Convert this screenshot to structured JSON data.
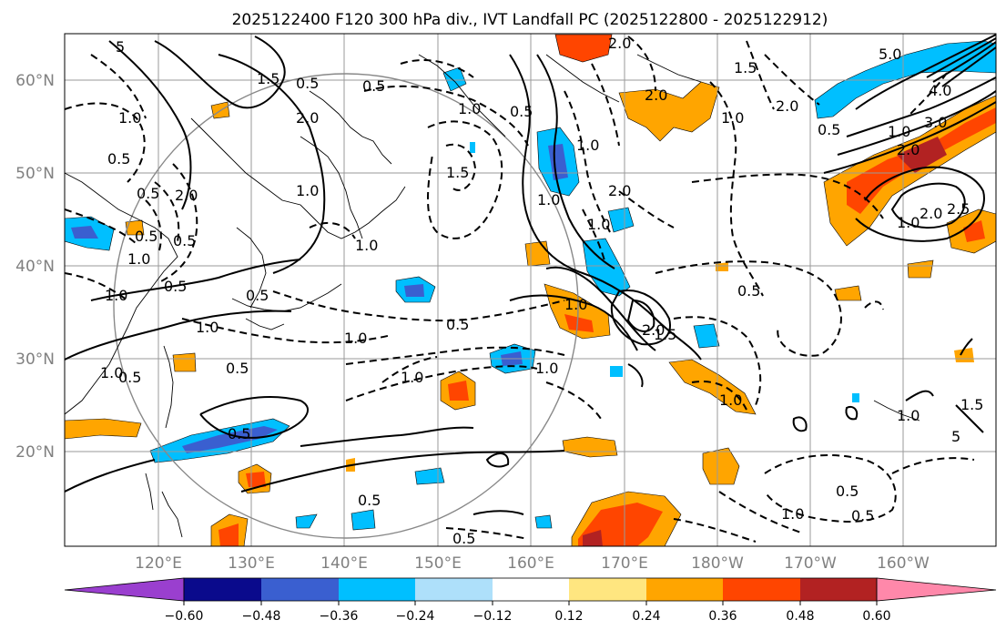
{
  "title": "2025122400 F120 300 hPa div., IVT Landfall PC (2025122800 - 2025122912)",
  "lat_labels": [
    "60°N",
    "50°N",
    "40°N",
    "30°N",
    "20°N"
  ],
  "lon_labels": [
    "120°E",
    "130°E",
    "140°E",
    "150°E",
    "160°E",
    "170°E",
    "180°W",
    "170°W",
    "160°W"
  ],
  "colorbar": {
    "ticks": [
      "−0.60",
      "−0.48",
      "−0.36",
      "−0.24",
      "−0.12",
      "0.12",
      "0.24",
      "0.36",
      "0.48",
      "0.60"
    ],
    "colors": [
      "#9a3fcf",
      "#0a0a8c",
      "#3a5fd0",
      "#00bfff",
      "#aee0fa",
      "#ffffff",
      "#ffe680",
      "#ffa500",
      "#ff4500",
      "#b22222",
      "#ff88aa"
    ]
  },
  "contour_labels": [
    "2.0",
    "5",
    "1.5",
    "0.5",
    "0.5",
    "1.0",
    "2.0",
    "1.0",
    "0.5",
    "2.0",
    "1.5",
    "0.5",
    "1.0",
    "1.0",
    "1.0",
    "0.5",
    "2.0",
    "0.5",
    "0.5",
    "1.0",
    "1.0",
    "0.5",
    "0.5",
    "1.0",
    "1.0",
    "1.5",
    "2.0",
    "1.0",
    "1.0",
    "0.5",
    "1.0",
    "1.0",
    "0.5",
    "1.0",
    "1.0",
    "1.0",
    "2.0",
    "1.5",
    "1.0",
    "0.5",
    "0.5",
    "0.5",
    "0.5",
    "0.5",
    "1.0",
    "0.5",
    "0.5",
    "2.0",
    "1.0",
    "5",
    "1.5",
    "1.0",
    "2.0",
    "2.5",
    "2.0",
    "3.0",
    "1.0",
    "0.5",
    "4.0",
    "5.0"
  ]
}
